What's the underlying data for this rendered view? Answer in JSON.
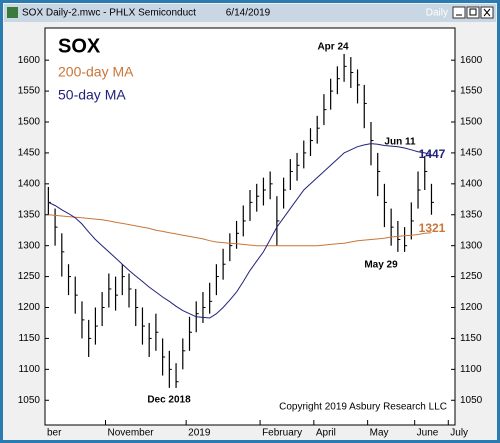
{
  "window": {
    "title": "SOX Daily-2.mwc - PHLX Semiconduct",
    "date": "6/14/2019",
    "mode": "Daily"
  },
  "chart_data": {
    "type": "ohlc",
    "categories": [
      "ber",
      null,
      null,
      null,
      null,
      null,
      null,
      null,
      null,
      "November",
      null,
      null,
      null,
      null,
      null,
      null,
      null,
      null,
      null,
      null,
      null,
      "2019",
      null,
      null,
      null,
      null,
      null,
      null,
      null,
      null,
      null,
      null,
      "February",
      null,
      null,
      null,
      null,
      null,
      null,
      null,
      "April",
      null,
      null,
      null,
      null,
      null,
      null,
      null,
      "May",
      null,
      null,
      null,
      null,
      null,
      null,
      "June",
      null,
      null,
      null,
      null,
      "July"
    ],
    "series": [
      {
        "name": "SOX",
        "color": "#000000",
        "high": [
          1395,
          1360,
          1320,
          1270,
          1250,
          1210,
          1180,
          1200,
          1225,
          1255,
          1250,
          1270,
          1255,
          1230,
          1200,
          1175,
          1190,
          1150,
          1130,
          1110,
          1150,
          1185,
          1210,
          1225,
          1240,
          1270,
          1295,
          1320,
          1340,
          1365,
          1390,
          1400,
          1410,
          1420,
          1380,
          1410,
          1440,
          1450,
          1470,
          1490,
          1510,
          1545,
          1570,
          1590,
          1610,
          1605,
          1585,
          1560,
          1500,
          1450,
          1400,
          1360,
          1340,
          1330,
          1370,
          1420,
          1445,
          1400,
          null,
          null,
          null
        ],
        "low": [
          1350,
          1300,
          1250,
          1220,
          1190,
          1150,
          1120,
          1140,
          1170,
          1200,
          1195,
          1220,
          1200,
          1170,
          1140,
          1120,
          1130,
          1090,
          1070,
          1070,
          1100,
          1130,
          1160,
          1175,
          1190,
          1220,
          1245,
          1275,
          1295,
          1315,
          1340,
          1355,
          1365,
          1375,
          1300,
          1360,
          1390,
          1405,
          1425,
          1445,
          1465,
          1495,
          1520,
          1545,
          1565,
          1555,
          1530,
          1490,
          1430,
          1380,
          1330,
          1300,
          1290,
          1290,
          1310,
          1360,
          1390,
          1350,
          null,
          null,
          null
        ],
        "close": [
          1370,
          1330,
          1290,
          1250,
          1220,
          1180,
          1150,
          1170,
          1200,
          1230,
          1220,
          1250,
          1230,
          1200,
          1170,
          1150,
          1160,
          1120,
          1100,
          1080,
          1130,
          1160,
          1190,
          1200,
          1210,
          1250,
          1270,
          1300,
          1320,
          1340,
          1370,
          1380,
          1390,
          1400,
          1340,
          1390,
          1420,
          1430,
          1450,
          1470,
          1490,
          1520,
          1550,
          1570,
          1590,
          1580,
          1560,
          1530,
          1470,
          1420,
          1370,
          1330,
          1310,
          1300,
          1340,
          1390,
          1420,
          1370,
          null,
          null,
          null
        ]
      },
      {
        "name": "200-day MA",
        "color": "#c8763a",
        "values": [
          1350,
          1349,
          1348,
          1347,
          1346,
          1345,
          1344,
          1343,
          1342,
          1340,
          1338,
          1336,
          1334,
          1332,
          1330,
          1328,
          1325,
          1323,
          1321,
          1319,
          1317,
          1315,
          1313,
          1311,
          1308,
          1306,
          1305,
          1304,
          1303,
          1302,
          1301,
          1300,
          1300,
          1300,
          1300,
          1300,
          1300,
          1300,
          1300,
          1300,
          1300,
          1301,
          1302,
          1303,
          1304,
          1306,
          1308,
          1309,
          1310,
          1311,
          1312,
          1314,
          1315,
          1316,
          1317,
          1318,
          1320,
          1321,
          null,
          null,
          null
        ]
      },
      {
        "name": "50-day MA",
        "color": "#22227a",
        "values": [
          1370,
          1365,
          1358,
          1352,
          1345,
          1335,
          1322,
          1310,
          1300,
          1290,
          1280,
          1270,
          1260,
          1251,
          1242,
          1233,
          1225,
          1217,
          1210,
          1202,
          1195,
          1190,
          1185,
          1184,
          1183,
          1190,
          1200,
          1212,
          1225,
          1242,
          1260,
          1275,
          1290,
          1310,
          1330,
          1345,
          1360,
          1375,
          1390,
          1400,
          1410,
          1420,
          1430,
          1440,
          1450,
          1455,
          1460,
          1463,
          1465,
          1464,
          1462,
          1461,
          1460,
          1458,
          1455,
          1452,
          1450,
          1447,
          null,
          null,
          null
        ]
      }
    ],
    "ylim": [
      1010,
      1652
    ],
    "yticks": [
      1050,
      1100,
      1150,
      1200,
      1250,
      1300,
      1350,
      1400,
      1450,
      1500,
      1550,
      1600
    ],
    "grid": false,
    "annotations": [
      {
        "text": "Apr 24",
        "color": "#000000"
      },
      {
        "text": "Jun 11",
        "color": "#000000"
      },
      {
        "text": "May 29",
        "color": "#000000"
      },
      {
        "text": "Dec 2018",
        "color": "#000000"
      },
      {
        "text": "1447",
        "color": "#22227a"
      },
      {
        "text": "1321",
        "color": "#c8763a"
      },
      {
        "text": "Copyright 2019 Asbury Research LLC",
        "color": "#000000"
      }
    ]
  }
}
